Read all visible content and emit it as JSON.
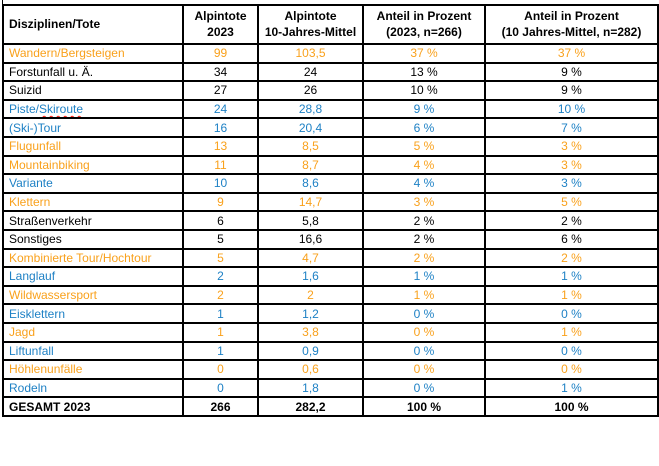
{
  "document": {
    "kind": "statistics-table",
    "language": "de"
  },
  "colors": {
    "orange": "#F9A11C",
    "blue": "#1E81C5",
    "black": "#000000",
    "grid": "#000000",
    "spellcheck_underline": "#FF1F13",
    "background": "#FFFFFF"
  },
  "table": {
    "columns": [
      {
        "key": "label",
        "header": "Disziplinen/Tote",
        "align": "left"
      },
      {
        "key": "deaths_2023",
        "header": "Alpintote\n2023",
        "align": "center"
      },
      {
        "key": "deaths_10yr",
        "header": "Alpintote\n10-Jahres-Mittel",
        "align": "center"
      },
      {
        "key": "pct_2023",
        "header": "Anteil in Prozent\n(2023, n=266)",
        "align": "center"
      },
      {
        "key": "pct_10yr",
        "header": "Anteil in Prozent\n(10 Jahres-Mittel, n=282)",
        "align": "center"
      }
    ],
    "rows": [
      {
        "label": "Wandern/Bergsteigen",
        "color": "orange",
        "deaths_2023": "99",
        "deaths_10yr": "103,5",
        "pct_2023": "37 %",
        "pct_10yr": "37 %"
      },
      {
        "label": "Forstunfall u. Ä.",
        "color": "black",
        "deaths_2023": "34",
        "deaths_10yr": "24",
        "pct_2023": "13 %",
        "pct_10yr": "9 %"
      },
      {
        "label": "Suizid",
        "color": "black",
        "deaths_2023": "27",
        "deaths_10yr": "26",
        "pct_2023": "10 %",
        "pct_10yr": "9 %"
      },
      {
        "label": "Piste/Skiroute",
        "color": "blue",
        "label_parts": [
          "Piste/",
          "Skiroute"
        ],
        "spellcheck_part_index": 1,
        "deaths_2023": "24",
        "deaths_10yr": "28,8",
        "pct_2023": "9 %",
        "pct_10yr": "10 %"
      },
      {
        "label": "(Ski-)Tour",
        "color": "blue",
        "deaths_2023": "16",
        "deaths_10yr": "20,4",
        "pct_2023": "6 %",
        "pct_10yr": "7 %"
      },
      {
        "label": "Flugunfall",
        "color": "orange",
        "deaths_2023": "13",
        "deaths_10yr": "8,5",
        "pct_2023": "5 %",
        "pct_10yr": "3 %"
      },
      {
        "label": "Mountainbiking",
        "color": "orange",
        "deaths_2023": "11",
        "deaths_10yr": "8,7",
        "pct_2023": "4 %",
        "pct_10yr": "3 %"
      },
      {
        "label": "Variante",
        "color": "blue",
        "deaths_2023": "10",
        "deaths_10yr": "8,6",
        "pct_2023": "4 %",
        "pct_10yr": "3 %"
      },
      {
        "label": "Klettern",
        "color": "orange",
        "deaths_2023": "9",
        "deaths_10yr": "14,7",
        "pct_2023": "3 %",
        "pct_10yr": "5 %"
      },
      {
        "label": "Straßenverkehr",
        "color": "black",
        "deaths_2023": "6",
        "deaths_10yr": "5,8",
        "pct_2023": "2 %",
        "pct_10yr": "2 %"
      },
      {
        "label": "Sonstiges",
        "color": "black",
        "deaths_2023": "5",
        "deaths_10yr": "16,6",
        "pct_2023": "2 %",
        "pct_10yr": "6 %"
      },
      {
        "label": "Kombinierte Tour/Hochtour",
        "color": "orange",
        "deaths_2023": "5",
        "deaths_10yr": "4,7",
        "pct_2023": "2 %",
        "pct_10yr": "2 %"
      },
      {
        "label": "Langlauf",
        "color": "blue",
        "deaths_2023": "2",
        "deaths_10yr": "1,6",
        "pct_2023": "1 %",
        "pct_10yr": "1 %"
      },
      {
        "label": "Wildwassersport",
        "color": "orange",
        "deaths_2023": "2",
        "deaths_10yr": "2",
        "pct_2023": "1 %",
        "pct_10yr": "1 %"
      },
      {
        "label": "Eisklettern",
        "color": "blue",
        "deaths_2023": "1",
        "deaths_10yr": "1,2",
        "pct_2023": "0 %",
        "pct_10yr": "0 %"
      },
      {
        "label": "Jagd",
        "color": "orange",
        "deaths_2023": "1",
        "deaths_10yr": "3,8",
        "pct_2023": "0 %",
        "pct_10yr": "1 %"
      },
      {
        "label": "Liftunfall",
        "color": "blue",
        "deaths_2023": "1",
        "deaths_10yr": "0,9",
        "pct_2023": "0 %",
        "pct_10yr": "0 %"
      },
      {
        "label": "Höhlenunfälle",
        "color": "orange",
        "deaths_2023": "0",
        "deaths_10yr": "0,6",
        "pct_2023": "0 %",
        "pct_10yr": "0 %"
      },
      {
        "label": "Rodeln",
        "color": "blue",
        "deaths_2023": "0",
        "deaths_10yr": "1,8",
        "pct_2023": "0 %",
        "pct_10yr": "1 %"
      },
      {
        "label": "GESAMT 2023",
        "color": "black",
        "bold": true,
        "deaths_2023": "266",
        "deaths_10yr": "282,2",
        "pct_2023": "100 %",
        "pct_10yr": "100 %"
      }
    ]
  }
}
